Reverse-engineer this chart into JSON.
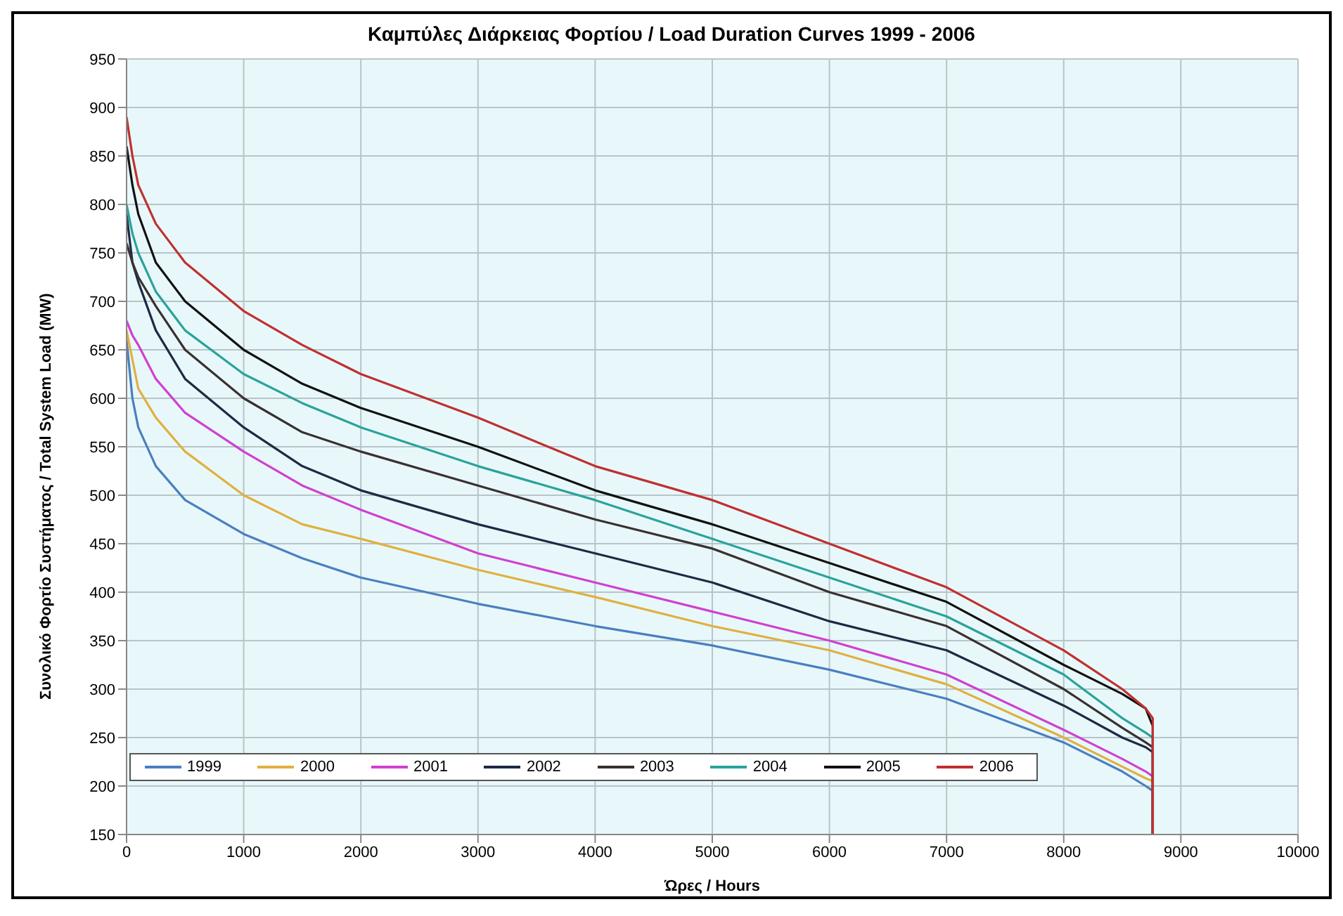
{
  "chart_data": {
    "type": "line",
    "title": "Καμπύλες Διάρκειας Φορτίου / Load Duration Curves 1999 - 2006",
    "xlabel": "Ώρες / Hours",
    "ylabel": "Συνολικό Φορτίο Συστήματος / Total System Load (MW)",
    "x": [
      0,
      50,
      100,
      250,
      500,
      1000,
      1500,
      2000,
      3000,
      4000,
      5000,
      6000,
      7000,
      8000,
      8500,
      8700,
      8760,
      8760
    ],
    "series": [
      {
        "name": "1999",
        "color": "#4a7fc1",
        "values": [
          660,
          600,
          570,
          530,
          495,
          460,
          435,
          415,
          388,
          365,
          345,
          320,
          290,
          245,
          215,
          200,
          195,
          150
        ]
      },
      {
        "name": "2000",
        "color": "#e0b040",
        "values": [
          670,
          640,
          610,
          580,
          545,
          500,
          470,
          455,
          423,
          395,
          365,
          340,
          305,
          250,
          220,
          208,
          205,
          150
        ]
      },
      {
        "name": "2001",
        "color": "#d040d0",
        "values": [
          680,
          665,
          655,
          620,
          585,
          545,
          510,
          485,
          440,
          410,
          380,
          350,
          315,
          258,
          228,
          215,
          210,
          150
        ]
      },
      {
        "name": "2002",
        "color": "#1e2a44",
        "values": [
          790,
          740,
          720,
          670,
          620,
          570,
          530,
          505,
          470,
          440,
          410,
          370,
          340,
          283,
          250,
          240,
          235,
          150
        ]
      },
      {
        "name": "2003",
        "color": "#3a3030",
        "values": [
          760,
          740,
          725,
          695,
          650,
          600,
          565,
          545,
          510,
          475,
          445,
          400,
          365,
          300,
          260,
          245,
          240,
          150
        ]
      },
      {
        "name": "2004",
        "color": "#2aa39a",
        "values": [
          800,
          770,
          750,
          710,
          670,
          625,
          595,
          570,
          530,
          495,
          455,
          415,
          375,
          315,
          270,
          255,
          250,
          150
        ]
      },
      {
        "name": "2005",
        "color": "#111111",
        "values": [
          860,
          820,
          790,
          740,
          700,
          650,
          615,
          590,
          550,
          505,
          470,
          430,
          390,
          325,
          295,
          280,
          262,
          150
        ]
      },
      {
        "name": "2006",
        "color": "#c03030",
        "values": [
          890,
          850,
          820,
          780,
          740,
          690,
          655,
          625,
          580,
          530,
          495,
          450,
          405,
          340,
          300,
          280,
          270,
          150
        ]
      }
    ],
    "xlim": [
      0,
      10000
    ],
    "xticks": [
      0,
      1000,
      2000,
      3000,
      4000,
      5000,
      6000,
      7000,
      8000,
      9000,
      10000
    ],
    "ylim": [
      150,
      950
    ],
    "yticks": [
      150,
      200,
      250,
      300,
      350,
      400,
      450,
      500,
      550,
      600,
      650,
      700,
      750,
      800,
      850,
      900,
      950
    ],
    "grid": true,
    "legend": "bottom left",
    "marker": "none",
    "line_style": "solid"
  }
}
